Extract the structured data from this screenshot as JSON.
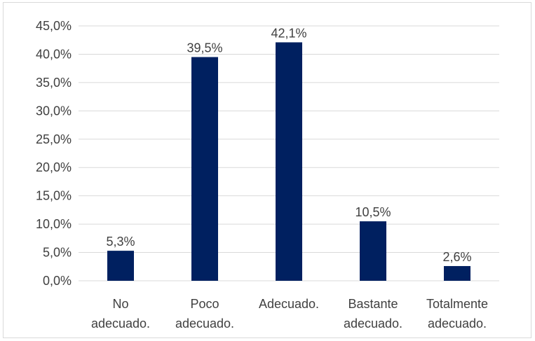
{
  "chart_data": {
    "type": "bar",
    "categories": [
      [
        "No",
        "adecuado."
      ],
      [
        "Poco",
        "adecuado."
      ],
      [
        "Adecuado."
      ],
      [
        "Bastante",
        "adecuado."
      ],
      [
        "Totalmente",
        "adecuado."
      ]
    ],
    "values": [
      5.3,
      39.5,
      42.1,
      10.5,
      2.6
    ],
    "value_labels": [
      "5,3%",
      "39,5%",
      "42,1%",
      "10,5%",
      "2,6%"
    ],
    "y_ticks": [
      0,
      5,
      10,
      15,
      20,
      25,
      30,
      35,
      40,
      45
    ],
    "y_tick_labels": [
      "0,0%",
      "5,0%",
      "10,0%",
      "15,0%",
      "20,0%",
      "25,0%",
      "30,0%",
      "35,0%",
      "40,0%",
      "45,0%"
    ],
    "ylim": [
      0,
      45
    ],
    "grid": true,
    "colors": {
      "bar": "#002060",
      "grid": "#d9d9d9",
      "text": "#404040"
    }
  }
}
